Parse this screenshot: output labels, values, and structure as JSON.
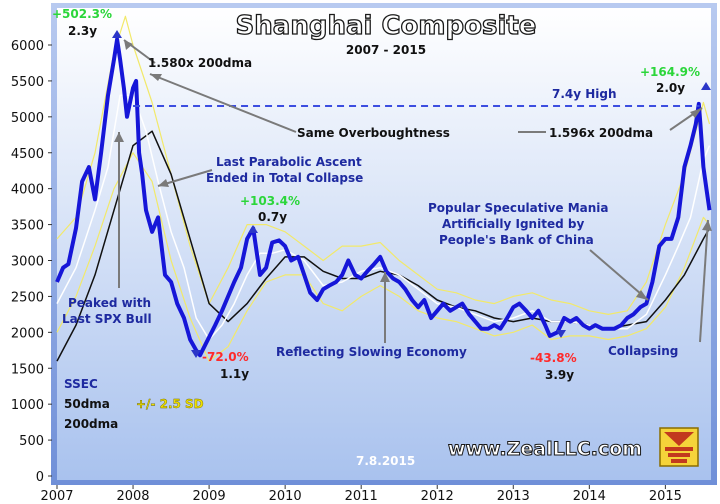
{
  "chart_data": {
    "type": "line",
    "title": "Shanghai Composite",
    "subtitle": "2007 - 2015",
    "ylim": [
      0,
      6500
    ],
    "xlim": [
      2007.0,
      2015.6
    ],
    "yticks": [
      0,
      500,
      1000,
      1500,
      2000,
      2500,
      3000,
      3500,
      4000,
      4500,
      5000,
      5500,
      6000
    ],
    "xticks": [
      "2007",
      "2008",
      "2009",
      "2010",
      "2011",
      "2012",
      "2013",
      "2014",
      "2015"
    ],
    "grid": false,
    "series": [
      {
        "name": "SSEC",
        "color": "#1616d8",
        "x": [
          2007.0,
          2007.08,
          2007.15,
          2007.25,
          2007.33,
          2007.42,
          2007.5,
          2007.58,
          2007.67,
          2007.75,
          2007.79,
          2007.83,
          2007.88,
          2007.92,
          2008.0,
          2008.04,
          2008.08,
          2008.12,
          2008.17,
          2008.25,
          2008.33,
          2008.42,
          2008.5,
          2008.58,
          2008.67,
          2008.75,
          2008.83,
          2008.88,
          2008.96,
          2009.08,
          2009.17,
          2009.25,
          2009.33,
          2009.42,
          2009.5,
          2009.58,
          2009.67,
          2009.75,
          2009.83,
          2009.92,
          2010.0,
          2010.08,
          2010.17,
          2010.25,
          2010.33,
          2010.42,
          2010.5,
          2010.58,
          2010.67,
          2010.75,
          2010.83,
          2010.92,
          2011.0,
          2011.08,
          2011.17,
          2011.25,
          2011.33,
          2011.42,
          2011.5,
          2011.58,
          2011.67,
          2011.75,
          2011.83,
          2011.92,
          2012.0,
          2012.08,
          2012.17,
          2012.25,
          2012.33,
          2012.42,
          2012.5,
          2012.58,
          2012.67,
          2012.75,
          2012.83,
          2012.92,
          2013.0,
          2013.08,
          2013.17,
          2013.25,
          2013.33,
          2013.42,
          2013.48,
          2013.58,
          2013.67,
          2013.75,
          2013.83,
          2013.92,
          2014.0,
          2014.08,
          2014.17,
          2014.25,
          2014.33,
          2014.42,
          2014.5,
          2014.58,
          2014.67,
          2014.75,
          2014.83,
          2014.92,
          2015.0,
          2015.08,
          2015.17,
          2015.25,
          2015.33,
          2015.4,
          2015.44,
          2015.46,
          2015.5,
          2015.54,
          2015.58
        ],
        "y": [
          2700,
          2900,
          2950,
          3450,
          4100,
          4300,
          3850,
          4500,
          5300,
          5800,
          6080,
          5800,
          5400,
          5000,
          5400,
          5500,
          4500,
          4200,
          3700,
          3400,
          3600,
          2800,
          2700,
          2400,
          2200,
          1900,
          1750,
          1680,
          1850,
          2100,
          2300,
          2500,
          2700,
          2900,
          3300,
          3450,
          2800,
          2900,
          3250,
          3280,
          3200,
          3000,
          3050,
          2800,
          2550,
          2450,
          2600,
          2650,
          2700,
          2800,
          3000,
          2800,
          2750,
          2850,
          2950,
          3050,
          2850,
          2750,
          2700,
          2600,
          2450,
          2350,
          2450,
          2200,
          2300,
          2400,
          2300,
          2350,
          2400,
          2250,
          2150,
          2050,
          2050,
          2100,
          2050,
          2200,
          2350,
          2400,
          2300,
          2200,
          2300,
          2100,
          1950,
          2000,
          2200,
          2150,
          2200,
          2100,
          2050,
          2100,
          2050,
          2050,
          2050,
          2100,
          2200,
          2250,
          2350,
          2400,
          2700,
          3200,
          3300,
          3300,
          3600,
          4300,
          4600,
          4900,
          5180,
          4900,
          4300,
          4000,
          3700
        ]
      },
      {
        "name": "50dma",
        "color": "#ffffff",
        "x": [
          2007.0,
          2007.25,
          2007.5,
          2007.67,
          2007.83,
          2008.0,
          2008.17,
          2008.33,
          2008.5,
          2008.67,
          2008.83,
          2009.0,
          2009.17,
          2009.33,
          2009.5,
          2009.67,
          2009.83,
          2010.0,
          2010.25,
          2010.5,
          2010.75,
          2011.0,
          2011.25,
          2011.5,
          2011.75,
          2012.0,
          2012.25,
          2012.5,
          2012.75,
          2013.0,
          2013.25,
          2013.5,
          2013.75,
          2014.0,
          2014.25,
          2014.5,
          2014.75,
          2015.0,
          2015.17,
          2015.33,
          2015.5,
          2015.58
        ],
        "y": [
          2400,
          2900,
          3700,
          4300,
          5300,
          5300,
          4800,
          4100,
          3400,
          2900,
          2200,
          1900,
          2100,
          2400,
          2800,
          3100,
          3100,
          3150,
          3000,
          2650,
          2700,
          2850,
          2900,
          2800,
          2600,
          2400,
          2350,
          2250,
          2150,
          2200,
          2300,
          2150,
          2150,
          2100,
          2050,
          2050,
          2250,
          2800,
          3200,
          3600,
          4400,
          4600
        ]
      },
      {
        "name": "200dma",
        "color": "#111111",
        "x": [
          2007.0,
          2007.25,
          2007.5,
          2007.75,
          2008.0,
          2008.25,
          2008.5,
          2008.75,
          2009.0,
          2009.25,
          2009.5,
          2009.75,
          2010.0,
          2010.25,
          2010.5,
          2010.75,
          2011.0,
          2011.25,
          2011.5,
          2011.75,
          2012.0,
          2012.25,
          2012.5,
          2012.75,
          2013.0,
          2013.25,
          2013.5,
          2013.75,
          2014.0,
          2014.25,
          2014.5,
          2014.75,
          2015.0,
          2015.25,
          2015.5,
          2015.58
        ],
        "y": [
          1600,
          2100,
          2800,
          3700,
          4600,
          4800,
          4200,
          3300,
          2400,
          2150,
          2400,
          2750,
          3050,
          3050,
          2850,
          2750,
          2750,
          2850,
          2800,
          2650,
          2450,
          2350,
          2300,
          2200,
          2150,
          2200,
          2150,
          2150,
          2100,
          2050,
          2100,
          2150,
          2450,
          2800,
          3300,
          3450
        ]
      },
      {
        "name": "+/- 2.5 SD",
        "color": "#f2e96a",
        "x": [
          2007.0,
          2007.25,
          2007.5,
          2007.75,
          2007.9,
          2008.0,
          2008.25,
          2008.5,
          2008.75,
          2009.0,
          2009.25,
          2009.5,
          2009.75,
          2010.0,
          2010.25,
          2010.5,
          2010.75,
          2011.0,
          2011.25,
          2011.5,
          2011.75,
          2012.0,
          2012.25,
          2012.5,
          2012.75,
          2013.0,
          2013.25,
          2013.5,
          2013.75,
          2014.0,
          2014.25,
          2014.5,
          2014.75,
          2015.0,
          2015.25,
          2015.5,
          2015.58
        ],
        "y": [
          3300,
          3600,
          4500,
          5900,
          6400,
          6000,
          5200,
          4200,
          3200,
          2400,
          2900,
          3500,
          3500,
          3400,
          3200,
          3000,
          3200,
          3200,
          3250,
          3000,
          2800,
          2600,
          2550,
          2450,
          2400,
          2500,
          2550,
          2450,
          2400,
          2300,
          2250,
          2300,
          2700,
          3500,
          4200,
          5200,
          4900
        ]
      },
      {
        "name": "-2.5 SD",
        "color": "#f2e96a",
        "x": [
          2007.0,
          2007.25,
          2007.5,
          2007.75,
          2008.0,
          2008.25,
          2008.5,
          2008.75,
          2009.0,
          2009.25,
          2009.5,
          2009.75,
          2010.0,
          2010.25,
          2010.5,
          2010.75,
          2011.0,
          2011.25,
          2011.5,
          2011.75,
          2012.0,
          2012.25,
          2012.5,
          2012.75,
          2013.0,
          2013.25,
          2013.5,
          2013.75,
          2014.0,
          2014.25,
          2014.5,
          2014.75,
          2015.0,
          2015.25,
          2015.5,
          2015.58
        ],
        "y": [
          2000,
          2500,
          3200,
          4000,
          4500,
          4100,
          3000,
          2200,
          1600,
          1800,
          2300,
          2700,
          2800,
          2800,
          2400,
          2300,
          2500,
          2650,
          2500,
          2300,
          2200,
          2150,
          2050,
          1950,
          2000,
          2100,
          1900,
          1950,
          1950,
          1900,
          1950,
          2050,
          2350,
          2900,
          3600,
          3500
        ]
      }
    ],
    "hline": {
      "y": 5150,
      "x0": 2008.0,
      "x1": 2015.45,
      "label": "7.4y High"
    },
    "annotations": [
      {
        "id": "pct-2007",
        "text": "+502.3%",
        "kind": "up"
      },
      {
        "id": "dur-2007",
        "text": "2.3y",
        "kind": "dur"
      },
      {
        "id": "ratio-2007",
        "text": "1.580x 200dma",
        "kind": "ann"
      },
      {
        "id": "same-ob",
        "text": "Same Overboughtness",
        "kind": "ann"
      },
      {
        "id": "ratio-2015",
        "text": "1.596x 200dma",
        "kind": "ann"
      },
      {
        "id": "high-74",
        "text": "7.4y High",
        "kind": "ann"
      },
      {
        "id": "pct-2015",
        "text": "+164.9%",
        "kind": "up"
      },
      {
        "id": "dur-2015",
        "text": "2.0y",
        "kind": "dur"
      },
      {
        "id": "last-para-1",
        "text": "Last Parabolic Ascent",
        "kind": "ann"
      },
      {
        "id": "last-para-2",
        "text": "Ended in Total Collapse",
        "kind": "ann"
      },
      {
        "id": "pct-2009",
        "text": "+103.4%",
        "kind": "up"
      },
      {
        "id": "dur-2009",
        "text": "0.7y",
        "kind": "dur"
      },
      {
        "id": "mania-1",
        "text": "Popular Speculative Mania",
        "kind": "ann"
      },
      {
        "id": "mania-2",
        "text": "Artificially Ignited by",
        "kind": "ann"
      },
      {
        "id": "mania-3",
        "text": "People's Bank of China",
        "kind": "ann"
      },
      {
        "id": "peaked-1",
        "text": "Peaked with",
        "kind": "ann"
      },
      {
        "id": "peaked-2",
        "text": "Last SPX Bull",
        "kind": "ann"
      },
      {
        "id": "slowing",
        "text": "Reflecting Slowing Economy",
        "kind": "ann"
      },
      {
        "id": "pct-2008",
        "text": "-72.0%",
        "kind": "down"
      },
      {
        "id": "dur-2008",
        "text": "1.1y",
        "kind": "dur"
      },
      {
        "id": "pct-2013",
        "text": "-43.8%",
        "kind": "down"
      },
      {
        "id": "dur-2013",
        "text": "3.9y",
        "kind": "dur"
      },
      {
        "id": "collapsing",
        "text": "Collapsing",
        "kind": "ann"
      }
    ],
    "legend": {
      "ssec": "SSEC",
      "dma50": "50dma",
      "sd": "+/- 2.5 SD",
      "dma200": "200dma"
    },
    "footer": {
      "url": "www.ZealLLC.com",
      "date": "7.8.2015"
    }
  },
  "colors": {
    "frame": "#7f9fe0",
    "plot_bg_top": "#ffffff",
    "plot_bg_bottom": "#a9c2ee",
    "title_fill": "#ffffff",
    "title_stroke": "#1a1a1a"
  }
}
